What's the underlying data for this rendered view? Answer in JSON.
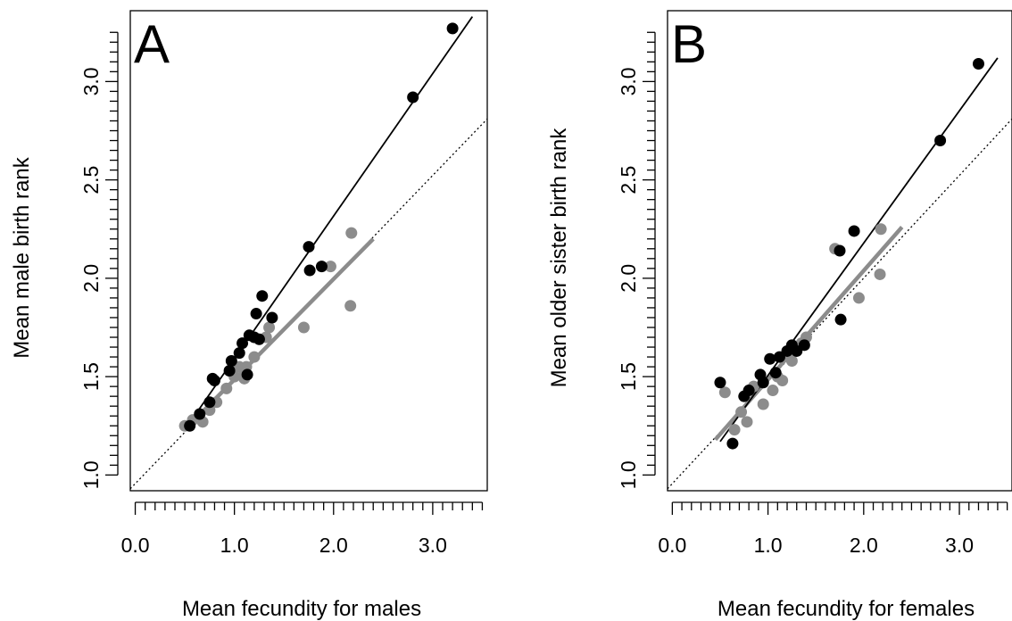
{
  "chart_data": [
    {
      "type": "scatter",
      "panel_label": "A",
      "xlabel": "Mean fecundity for males",
      "ylabel": "Mean male birth rank",
      "xlim": [
        -0.05,
        3.55
      ],
      "ylim": [
        0.92,
        3.36
      ],
      "x_ticks": [
        "0.0",
        "1.0",
        "2.0",
        "3.0"
      ],
      "y_ticks": [
        "1.0",
        "1.5",
        "2.0",
        "2.5",
        "3.0"
      ],
      "x_minor_tick_step": 0.1,
      "grid": false,
      "colors": {
        "black": "#000000",
        "gray": "#8c8c8c"
      },
      "series": [
        {
          "color": "#000000",
          "points": [
            [
              0.55,
              1.25
            ],
            [
              0.65,
              1.31
            ],
            [
              0.75,
              1.37
            ],
            [
              0.78,
              1.49
            ],
            [
              0.8,
              1.48
            ],
            [
              0.95,
              1.53
            ],
            [
              0.97,
              1.58
            ],
            [
              1.05,
              1.62
            ],
            [
              1.08,
              1.67
            ],
            [
              1.13,
              1.51
            ],
            [
              1.15,
              1.71
            ],
            [
              1.2,
              1.7
            ],
            [
              1.22,
              1.82
            ],
            [
              1.25,
              1.69
            ],
            [
              1.28,
              1.91
            ],
            [
              1.38,
              1.8
            ],
            [
              1.75,
              2.16
            ],
            [
              1.76,
              2.04
            ],
            [
              1.88,
              2.06
            ],
            [
              2.8,
              2.92
            ],
            [
              3.2,
              3.27
            ]
          ],
          "fit": {
            "x": [
              0.5,
              3.4
            ],
            "y": [
              1.23,
              3.33
            ]
          }
        },
        {
          "color": "#8c8c8c",
          "points": [
            [
              0.5,
              1.25
            ],
            [
              0.58,
              1.28
            ],
            [
              0.68,
              1.27
            ],
            [
              0.75,
              1.33
            ],
            [
              0.82,
              1.37
            ],
            [
              0.92,
              1.44
            ],
            [
              1.0,
              1.5
            ],
            [
              1.05,
              1.55
            ],
            [
              1.1,
              1.49
            ],
            [
              1.12,
              1.55
            ],
            [
              1.2,
              1.6
            ],
            [
              1.32,
              1.7
            ],
            [
              1.35,
              1.75
            ],
            [
              1.7,
              1.75
            ],
            [
              1.97,
              2.06
            ],
            [
              2.17,
              1.86
            ],
            [
              2.18,
              2.23
            ]
          ],
          "fit": {
            "x": [
              0.5,
              2.4
            ],
            "y": [
              1.23,
              2.2
            ]
          }
        }
      ],
      "reference_line": {
        "style": "dotted",
        "x": [
          -0.05,
          3.55
        ],
        "y": [
          0.93,
          2.81
        ]
      }
    },
    {
      "type": "scatter",
      "panel_label": "B",
      "xlabel": "Mean fecundity for females",
      "ylabel": "Mean older sister birth rank",
      "xlim": [
        -0.05,
        3.55
      ],
      "ylim": [
        0.92,
        3.36
      ],
      "x_ticks": [
        "0.0",
        "1.0",
        "2.0",
        "3.0"
      ],
      "y_ticks": [
        "1.0",
        "1.5",
        "2.0",
        "2.5",
        "3.0"
      ],
      "x_minor_tick_step": 0.1,
      "grid": false,
      "colors": {
        "black": "#000000",
        "gray": "#8c8c8c"
      },
      "series": [
        {
          "color": "#000000",
          "points": [
            [
              0.5,
              1.47
            ],
            [
              0.63,
              1.16
            ],
            [
              0.75,
              1.4
            ],
            [
              0.8,
              1.43
            ],
            [
              0.92,
              1.51
            ],
            [
              0.95,
              1.47
            ],
            [
              1.02,
              1.59
            ],
            [
              1.08,
              1.52
            ],
            [
              1.12,
              1.6
            ],
            [
              1.2,
              1.63
            ],
            [
              1.25,
              1.66
            ],
            [
              1.3,
              1.63
            ],
            [
              1.38,
              1.66
            ],
            [
              1.75,
              2.14
            ],
            [
              1.76,
              1.79
            ],
            [
              1.9,
              2.24
            ],
            [
              2.8,
              2.7
            ],
            [
              3.2,
              3.09
            ]
          ],
          "fit": {
            "x": [
              0.5,
              3.4
            ],
            "y": [
              1.17,
              3.12
            ]
          }
        },
        {
          "color": "#8c8c8c",
          "points": [
            [
              0.55,
              1.42
            ],
            [
              0.65,
              1.23
            ],
            [
              0.72,
              1.32
            ],
            [
              0.78,
              1.27
            ],
            [
              0.85,
              1.45
            ],
            [
              0.95,
              1.36
            ],
            [
              1.05,
              1.43
            ],
            [
              1.1,
              1.5
            ],
            [
              1.15,
              1.48
            ],
            [
              1.25,
              1.58
            ],
            [
              1.35,
              1.67
            ],
            [
              1.4,
              1.7
            ],
            [
              1.7,
              2.15
            ],
            [
              1.95,
              1.9
            ],
            [
              2.17,
              2.02
            ],
            [
              2.18,
              2.25
            ]
          ],
          "fit": {
            "x": [
              0.45,
              2.4
            ],
            "y": [
              1.18,
              2.26
            ]
          }
        }
      ],
      "reference_line": {
        "style": "dotted",
        "x": [
          -0.05,
          3.55
        ],
        "y": [
          0.93,
          2.81
        ]
      }
    }
  ]
}
